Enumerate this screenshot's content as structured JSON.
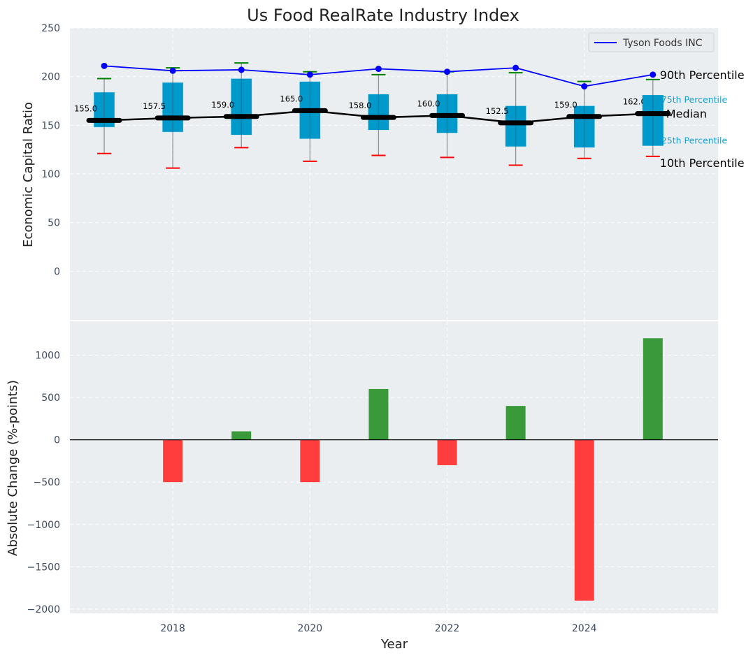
{
  "chart_data": [
    {
      "type": "box",
      "title": "Us Food RealRate Industry Index",
      "xlabel": "",
      "ylabel": "Economic Capital Ratio",
      "ylim": [
        -50,
        250
      ],
      "yticks": [
        0,
        50,
        100,
        150,
        200,
        250
      ],
      "grid": true,
      "categories": [
        2017,
        2018,
        2019,
        2020,
        2021,
        2022,
        2023,
        2024,
        2025
      ],
      "series": [
        {
          "name": "10th Percentile",
          "values": [
            121,
            106,
            127,
            113,
            119,
            117,
            109,
            116,
            118
          ]
        },
        {
          "name": "25th Percentile",
          "values": [
            148,
            143,
            140,
            136,
            145,
            142,
            128,
            127,
            129
          ]
        },
        {
          "name": "Median",
          "values": [
            155.0,
            157.5,
            159.0,
            165.0,
            158.0,
            160.0,
            152.5,
            159.0,
            162.0
          ]
        },
        {
          "name": "75th Percentile",
          "values": [
            184,
            194,
            198,
            195,
            182,
            182,
            170,
            170,
            181
          ]
        },
        {
          "name": "90th Percentile",
          "values": [
            198,
            209,
            214,
            205,
            202,
            205,
            204,
            195,
            197
          ]
        },
        {
          "name": "Tyson Foods INC",
          "values": [
            211,
            206,
            207,
            202,
            208,
            205,
            209,
            190,
            202
          ]
        }
      ],
      "median_labels": [
        "155.0",
        "157.5",
        "159.0",
        "165.0",
        "158.0",
        "160.0",
        "152.5",
        "159.0",
        "162.0"
      ],
      "legend": {
        "entries": [
          "Tyson Foods INC"
        ],
        "placement": "top-right"
      },
      "annotations": [
        "90th Percentile",
        "75th Percentile",
        "Median",
        "25th Percentile",
        "10th Percentile"
      ]
    },
    {
      "type": "bar",
      "title": "",
      "xlabel": "Year",
      "ylabel": "Absolute Change (%-points)",
      "ylim": [
        -2050,
        1400
      ],
      "yticks": [
        -2000,
        -1500,
        -1000,
        -500,
        0,
        500,
        1000
      ],
      "xticks": [
        2018,
        2020,
        2022,
        2024
      ],
      "xlim": [
        2016.5,
        2025.95
      ],
      "grid": true,
      "categories": [
        2018,
        2019,
        2020,
        2021,
        2022,
        2023,
        2024,
        2025
      ],
      "values": [
        -500,
        100,
        -500,
        600,
        -300,
        400,
        -1900,
        1200
      ]
    }
  ],
  "colors": {
    "box": "#0099cc",
    "tyson_line": "#0000ff",
    "median_line": "#000000",
    "p90_cap": "#008000",
    "p10_cap": "#ff0000",
    "bar_positive": "#3a9a3a",
    "bar_negative": "#ff3d3d",
    "plot_bg": "#eaeef0",
    "percentile_text": "#1aa3d0"
  },
  "labels": {
    "title": "Us Food RealRate Industry Index",
    "top_ylabel": "Economic Capital Ratio",
    "bottom_ylabel": "Absolute Change (%-points)",
    "xlabel": "Year",
    "legend_tyson": "Tyson Foods INC",
    "annot_p90": "90th Percentile",
    "annot_p75": "75th Percentile",
    "annot_median": "Median",
    "annot_p25": "25th Percentile",
    "annot_p10": "10th Percentile"
  }
}
